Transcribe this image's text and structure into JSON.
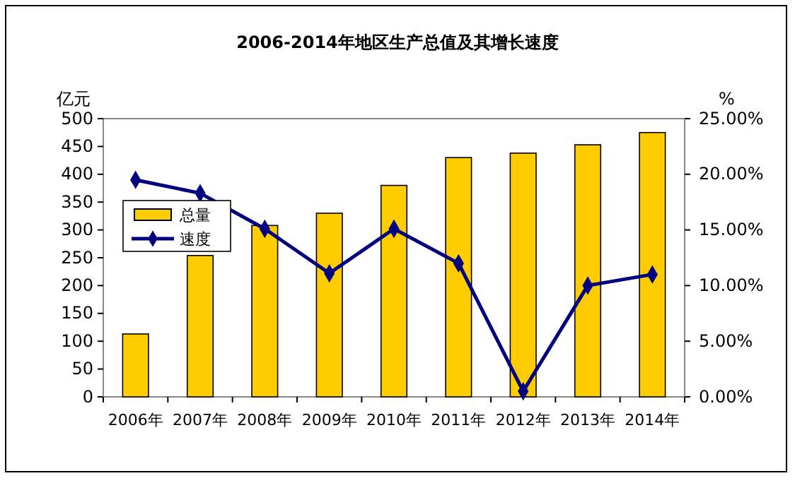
{
  "chart_data": {
    "type": "bar",
    "title": "2006-2014年地区生产总值及其增长速度",
    "categories": [
      "2006年",
      "2007年",
      "2008年",
      "2009年",
      "2010年",
      "2011年",
      "2012年",
      "2013年",
      "2014年"
    ],
    "series": [
      {
        "name": "总量",
        "color": "#ffcc00",
        "values": [
          113,
          254,
          308,
          330,
          380,
          430,
          438,
          453,
          475
        ]
      },
      {
        "name": "速度",
        "type": "line",
        "axis": "y2",
        "color": "#000080",
        "marker": "diamond",
        "values": [
          19.5,
          18.3,
          15.1,
          11.1,
          15.1,
          12.0,
          0.5,
          10.0,
          11.0
        ]
      }
    ],
    "ylabel": "亿元",
    "y2label": "%",
    "ylim": [
      0,
      500
    ],
    "yticks": [
      0,
      50,
      100,
      150,
      200,
      250,
      300,
      350,
      400,
      450,
      500
    ],
    "y2lim": [
      0,
      25
    ],
    "y2ticks": [
      {
        "value": 0,
        "label": "0.00%"
      },
      {
        "value": 5,
        "label": "5.00%"
      },
      {
        "value": 10,
        "label": "10.00%"
      },
      {
        "value": 15,
        "label": "15.00%"
      },
      {
        "value": 20,
        "label": "20.00%"
      },
      {
        "value": 25,
        "label": "25.00%"
      }
    ],
    "legend": "top left",
    "grid": false
  }
}
